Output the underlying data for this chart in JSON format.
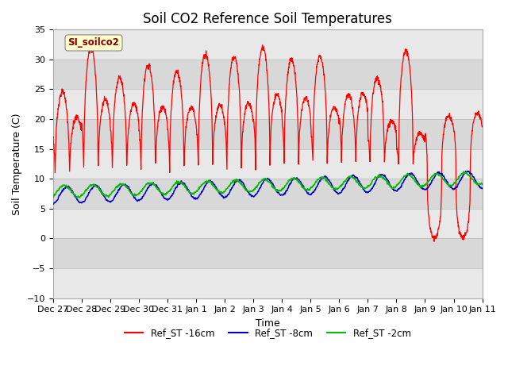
{
  "title": "Soil CO2 Reference Soil Temperatures",
  "xlabel": "Time",
  "ylabel": "Soil Temperature (C)",
  "ylim": [
    -10,
    35
  ],
  "yticks": [
    -10,
    -5,
    0,
    5,
    10,
    15,
    20,
    25,
    30,
    35
  ],
  "xtick_labels": [
    "Dec 27",
    "Dec 28",
    "Dec 29",
    "Dec 30",
    "Dec 31",
    "Jan 1",
    "Jan 2",
    "Jan 3",
    "Jan 4",
    "Jan 5",
    "Jan 6",
    "Jan 7",
    "Jan 8",
    "Jan 9",
    "Jan 10",
    "Jan 11"
  ],
  "legend_label": "SI_soilco2",
  "legend_box_color": "#ffffcc",
  "legend_box_edge": "#888888",
  "legend_text_color": "#880000",
  "line_colors": [
    "#ff0000",
    "#0000cc",
    "#00bb00"
  ],
  "line_labels": [
    "Ref_ST -16cm",
    "Ref_ST -8cm",
    "Ref_ST -2cm"
  ],
  "bg_color": "#ffffff",
  "plot_bg": "#e0e0e0",
  "band_colors": [
    "#e8e8e8",
    "#d8d8d8"
  ],
  "title_fontsize": 12,
  "axis_label_fontsize": 9,
  "tick_fontsize": 8
}
